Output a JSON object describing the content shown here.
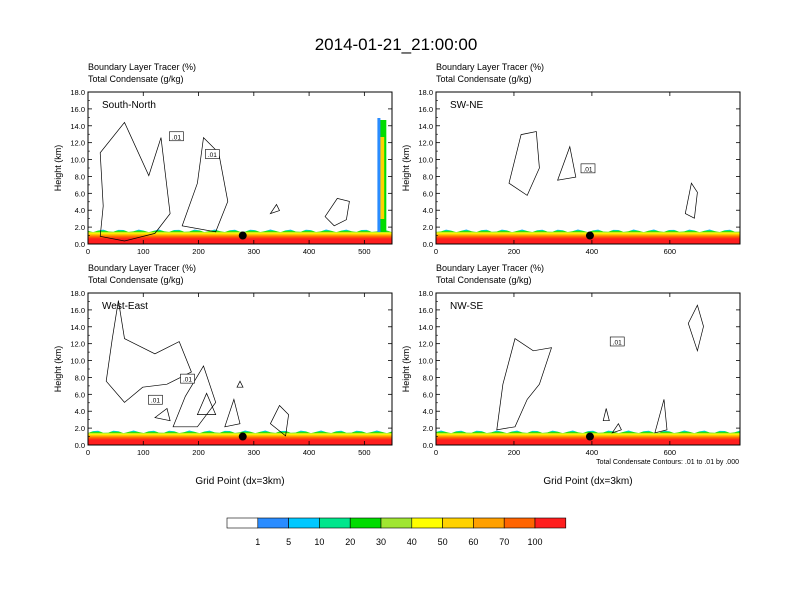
{
  "figure": {
    "title": "2014-01-21_21:00:00",
    "xlabel": "Grid Point (dx=3km)",
    "ylabel": "Height (km)",
    "contour_note": "Total Condensate Contours: .01 to .01 by .000"
  },
  "chart_data": [
    {
      "type": "heatmap",
      "panel": "South-North",
      "subtitle_1": "Boundary Layer Tracer   (%)",
      "subtitle_2": "Total Condensate   (g/kg)",
      "xlim": [
        0,
        550
      ],
      "xticks": [
        0,
        100,
        200,
        300,
        400,
        500
      ],
      "ylim": [
        0,
        18
      ],
      "yticks": [
        0,
        2,
        4,
        6,
        8,
        10,
        12,
        14,
        16,
        18
      ],
      "ytick_labels": [
        "0.0",
        "2.0",
        "4.0",
        "6.0",
        "8.0",
        "10.0",
        "12.0",
        "14.0",
        "16.0",
        "18.0"
      ],
      "marker_x": 280,
      "marker_y": 1.0,
      "contour_labels": [
        {
          "text": ".01",
          "x": 160,
          "y": 12.7
        },
        {
          "text": ".01",
          "x": 225,
          "y": 10.6
        }
      ]
    },
    {
      "type": "heatmap",
      "panel": "SW-NE",
      "subtitle_1": "Boundary Layer Tracer   (%)",
      "subtitle_2": "Total Condensate   (g/kg)",
      "xlim": [
        0,
        780
      ],
      "xticks": [
        0,
        200,
        400,
        600
      ],
      "ylim": [
        0,
        18
      ],
      "yticks": [
        0,
        2,
        4,
        6,
        8,
        10,
        12,
        14,
        16,
        18
      ],
      "ytick_labels": [
        "0.0",
        "2.0",
        "4.0",
        "6.0",
        "8.0",
        "10.0",
        "12.0",
        "14.0",
        "16.0",
        "18.0"
      ],
      "marker_x": 395,
      "marker_y": 1.0,
      "contour_labels": [
        {
          "text": ".01",
          "x": 390,
          "y": 8.9
        }
      ]
    },
    {
      "type": "heatmap",
      "panel": "West-East",
      "subtitle_1": "Boundary Layer Tracer   (%)",
      "subtitle_2": "Total Condensate   (g/kg)",
      "xlim": [
        0,
        550
      ],
      "xticks": [
        0,
        100,
        200,
        300,
        400,
        500
      ],
      "ylim": [
        0,
        18
      ],
      "yticks": [
        0,
        2,
        4,
        6,
        8,
        10,
        12,
        14,
        16,
        18
      ],
      "ytick_labels": [
        "0.0",
        "2.0",
        "4.0",
        "6.0",
        "8.0",
        "10.0",
        "12.0",
        "14.0",
        "16.0",
        "18.0"
      ],
      "marker_x": 280,
      "marker_y": 1.0,
      "contour_labels": [
        {
          "text": ".01",
          "x": 180,
          "y": 7.8
        },
        {
          "text": ".01",
          "x": 122,
          "y": 5.3
        }
      ]
    },
    {
      "type": "heatmap",
      "panel": "NW-SE",
      "subtitle_1": "Boundary Layer Tracer   (%)",
      "subtitle_2": "Total Condensate   (g/kg)",
      "xlim": [
        0,
        780
      ],
      "xticks": [
        0,
        200,
        400,
        600
      ],
      "ylim": [
        0,
        18
      ],
      "yticks": [
        0,
        2,
        4,
        6,
        8,
        10,
        12,
        14,
        16,
        18
      ],
      "ytick_labels": [
        "0.0",
        "2.0",
        "4.0",
        "6.0",
        "8.0",
        "10.0",
        "12.0",
        "14.0",
        "16.0",
        "18.0"
      ],
      "marker_x": 395,
      "marker_y": 1.0,
      "contour_labels": [
        {
          "text": ".01",
          "x": 465,
          "y": 12.2
        }
      ]
    }
  ],
  "colorbar": {
    "colors": [
      "#ffffff",
      "#2a8cff",
      "#00c8ff",
      "#00e68c",
      "#00dc00",
      "#a0e632",
      "#ffff00",
      "#ffd200",
      "#ffa000",
      "#ff6400",
      "#ff1e1e"
    ],
    "labels": [
      "1",
      "5",
      "10",
      "20",
      "30",
      "40",
      "50",
      "60",
      "70",
      "100"
    ]
  }
}
